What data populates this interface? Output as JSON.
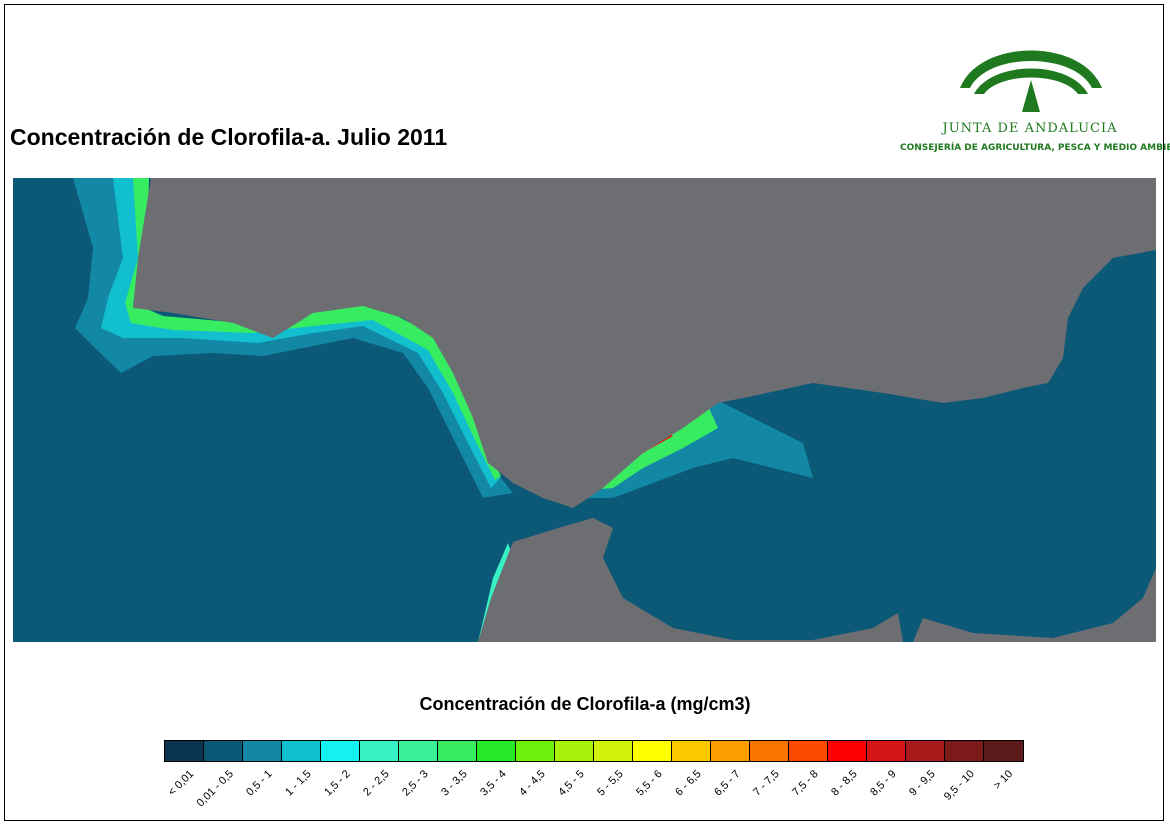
{
  "title": "Concentración de Clorofila-a. Julio 2011",
  "logo": {
    "name": "JUNTA DE ANDALUCIA",
    "department": "CONSEJERÍA DE AGRICULTURA, PESCA Y MEDIO AMBIENTE",
    "color": "#1f7a1f"
  },
  "map": {
    "land_color": "#6d6e72",
    "sea_color": "#0b5877"
  },
  "legend": {
    "title": "Concentración de Clorofila-a (mg/cm3)",
    "classes": [
      {
        "label": "< 0,01",
        "color": "#0b3550"
      },
      {
        "label": "0,01 - 0,5",
        "color": "#0b5877"
      },
      {
        "label": "0,5 - 1",
        "color": "#1388a4"
      },
      {
        "label": "1 - 1,5",
        "color": "#12bfcf"
      },
      {
        "label": "1,5 - 2",
        "color": "#16f2f2"
      },
      {
        "label": "2 - 2,5",
        "color": "#36f2c4"
      },
      {
        "label": "2,5 - 3",
        "color": "#3af098"
      },
      {
        "label": "3 - 3,5",
        "color": "#38ec62"
      },
      {
        "label": "3,5 - 4",
        "color": "#26e826"
      },
      {
        "label": "4 - 4,5",
        "color": "#6cf20a"
      },
      {
        "label": "4,5 - 5",
        "color": "#a8f20c"
      },
      {
        "label": "5 - 5,5",
        "color": "#d2f20e"
      },
      {
        "label": "5,5 - 6",
        "color": "#ffff00"
      },
      {
        "label": "6 - 6,5",
        "color": "#fcc800"
      },
      {
        "label": "6,5 - 7",
        "color": "#fc9c00"
      },
      {
        "label": "7 - 7,5",
        "color": "#fc7400"
      },
      {
        "label": "7,5 - 8",
        "color": "#fc4a00"
      },
      {
        "label": "8 - 8,5",
        "color": "#ff0000"
      },
      {
        "label": "8,5 - 9",
        "color": "#d41616"
      },
      {
        "label": "9 - 9,5",
        "color": "#a81a1a"
      },
      {
        "label": "9,5 - 10",
        "color": "#7c1a1a"
      },
      {
        "label": "> 10",
        "color": "#5a1a1a"
      }
    ]
  }
}
